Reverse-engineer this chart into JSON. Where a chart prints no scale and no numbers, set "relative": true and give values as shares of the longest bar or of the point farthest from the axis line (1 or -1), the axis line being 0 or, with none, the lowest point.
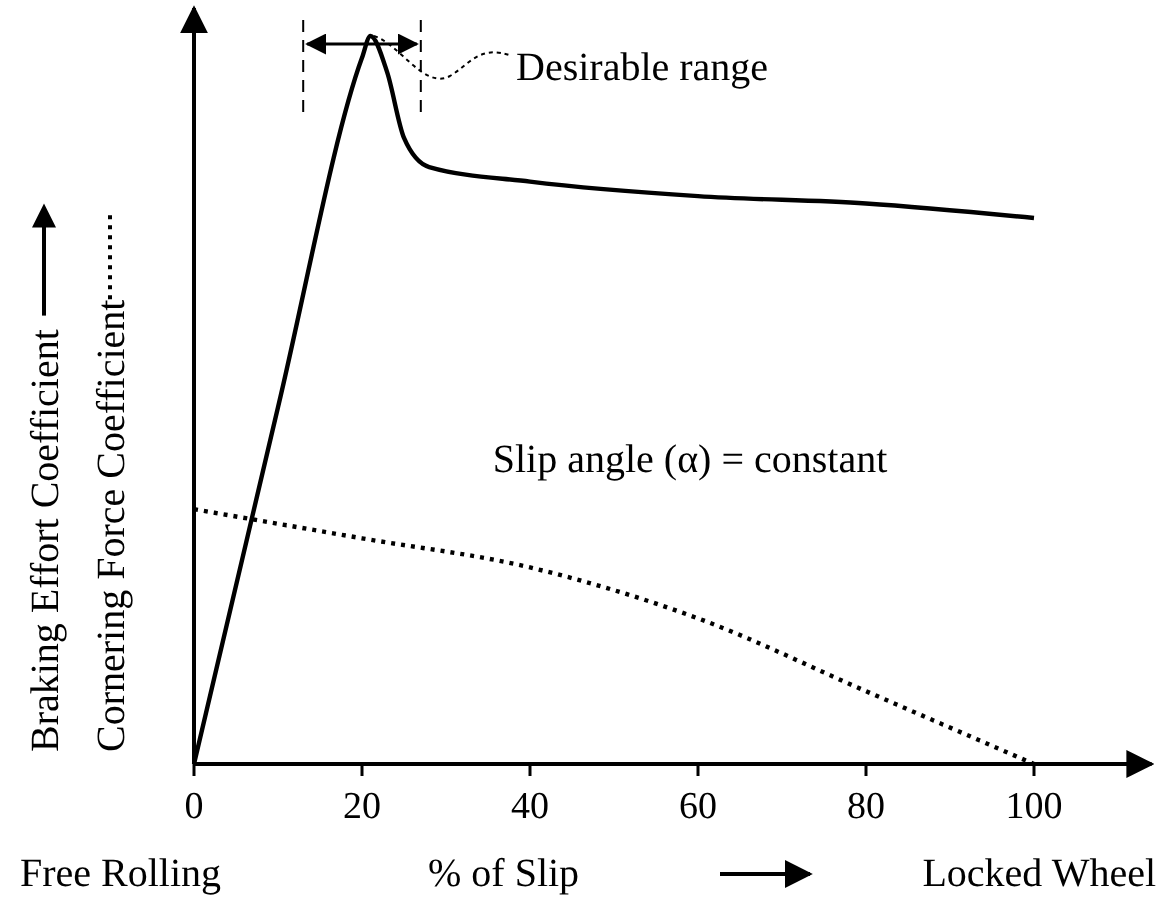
{
  "chart_data": {
    "type": "line",
    "relative": true,
    "xlabel": "% of Slip",
    "xlim": [
      0,
      114
    ],
    "xticks": [
      0,
      20,
      40,
      60,
      80,
      100
    ],
    "series": [
      {
        "name": "Braking Effort Coefficient",
        "color": "#000000",
        "line_style": "solid",
        "x": [
          0,
          10,
          20,
          21,
          23,
          25,
          28,
          40,
          60,
          80,
          100
        ],
        "values": [
          0,
          0.49,
          0.97,
          1,
          0.95,
          0.86,
          0.82,
          0.8,
          0.78,
          0.77,
          0.75
        ]
      },
      {
        "name": "Cornering Force Coefficient",
        "color": "#000000",
        "line_style": "dotted",
        "x": [
          0,
          10,
          20,
          40,
          60,
          80,
          100
        ],
        "values": [
          0.35,
          0.33,
          0.31,
          0.27,
          0.2,
          0.1,
          0
        ]
      }
    ],
    "ref_lines": [
      {
        "axis": "x",
        "value": 13,
        "line_style": "dashed"
      },
      {
        "axis": "x",
        "value": 27,
        "line_style": "dashed"
      }
    ],
    "annotations": [
      "Slip angle (α) = constant",
      "Free Rolling",
      "Locked Wheel",
      "Desirable range"
    ],
    "legend": "left"
  }
}
